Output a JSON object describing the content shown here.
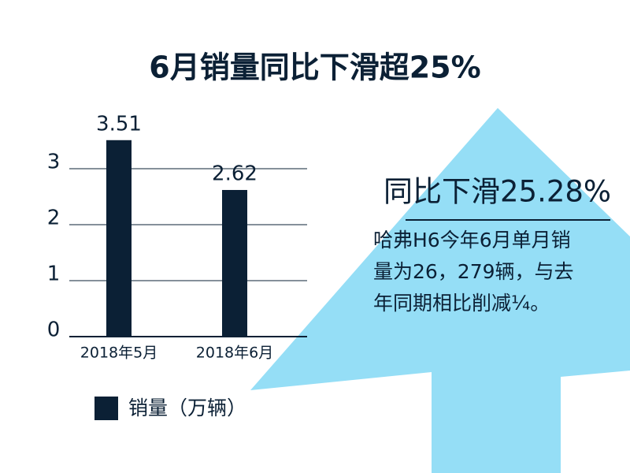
{
  "chart_data": {
    "type": "bar",
    "title": "6月销量同比下滑超25%",
    "categories": [
      "2018年5月",
      "2018年6月"
    ],
    "series": [
      {
        "name": "销量（万辆）",
        "color": "#0b2035",
        "values": [
          3.51,
          2.62
        ]
      }
    ],
    "ylim": [
      0,
      3.5
    ],
    "yticks": [
      0,
      1,
      2,
      3
    ],
    "grid": true,
    "annotations": [
      "同比下滑25.28%",
      "哈弗H6今年6月单月销",
      "量为26，279辆，与去",
      "年同期相比削减¼。"
    ]
  }
}
